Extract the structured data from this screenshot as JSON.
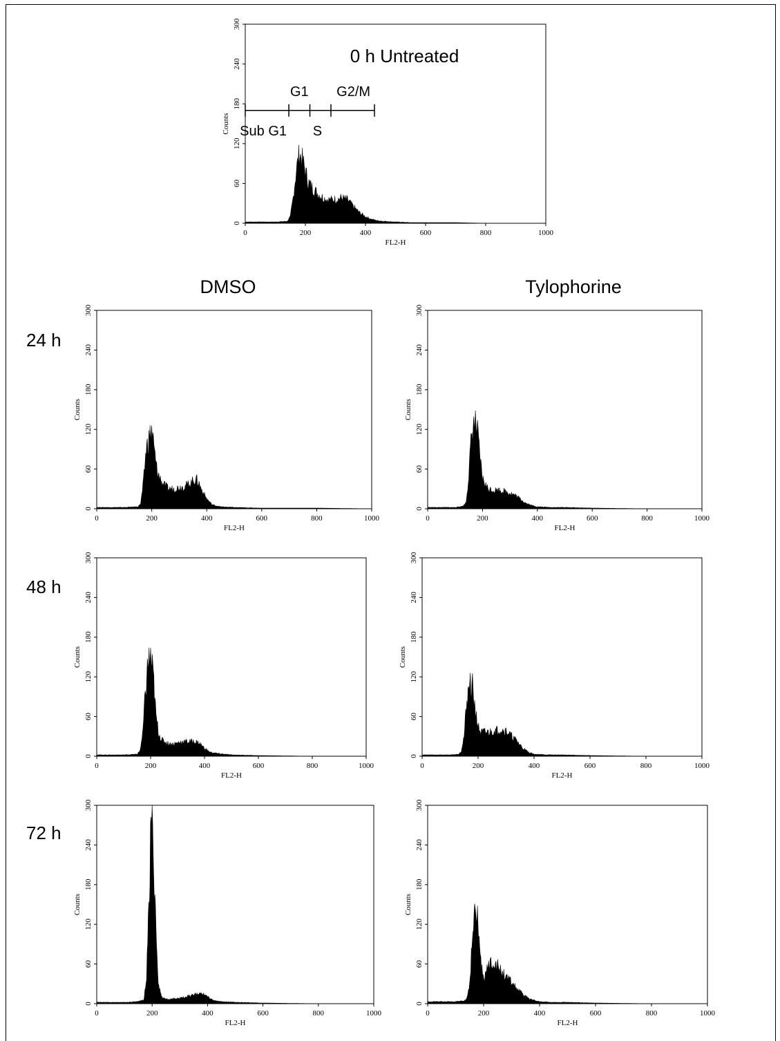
{
  "column_headers": {
    "left": "DMSO",
    "right": "Tylophorine"
  },
  "row_labels": [
    "24 h",
    "48 h",
    "72 h"
  ],
  "chart_data": [
    {
      "id": "untreated-0h",
      "type": "area",
      "title": "0 h Untreated",
      "xlabel": "FL2-H",
      "ylabel": "Counts",
      "xlim": [
        0,
        1000
      ],
      "ylim": [
        0,
        300
      ],
      "xticks": [
        "0",
        "200",
        "400",
        "600",
        "800",
        "1000"
      ],
      "yticks": [
        "0",
        "60",
        "120",
        "180",
        "240",
        "300"
      ],
      "grid": false,
      "fill_color": "#000000",
      "x": [
        0,
        50,
        100,
        140,
        150,
        160,
        170,
        180,
        190,
        200,
        210,
        220,
        240,
        260,
        280,
        300,
        320,
        340,
        360,
        380,
        400,
        420,
        440,
        460,
        500,
        550,
        600,
        700,
        800,
        900,
        1000
      ],
      "values": [
        2,
        2,
        2,
        3,
        10,
        40,
        80,
        105,
        95,
        78,
        62,
        55,
        45,
        38,
        35,
        36,
        38,
        35,
        25,
        16,
        10,
        6,
        4,
        3,
        2,
        1,
        1,
        1,
        0,
        0,
        0
      ],
      "gate_markers": {
        "boundaries": [
          0,
          145,
          215,
          285,
          430
        ],
        "labels": [
          {
            "text": "Sub G1",
            "position": "below",
            "x": 60
          },
          {
            "text": "G1",
            "position": "above",
            "x": 180
          },
          {
            "text": "S",
            "position": "below",
            "x": 240
          },
          {
            "text": "G2/M",
            "position": "above",
            "x": 360
          }
        ]
      }
    },
    {
      "id": "dmso-24h",
      "type": "area",
      "xlabel": "FL2-H",
      "ylabel": "Counts",
      "xlim": [
        0,
        1000
      ],
      "ylim": [
        0,
        300
      ],
      "xticks": [
        "0",
        "200",
        "400",
        "600",
        "800",
        "1000"
      ],
      "yticks": [
        "0",
        "60",
        "120",
        "180",
        "240",
        "300"
      ],
      "grid": false,
      "fill_color": "#000000",
      "x": [
        0,
        100,
        150,
        160,
        170,
        180,
        190,
        200,
        210,
        220,
        240,
        260,
        280,
        300,
        320,
        340,
        350,
        360,
        370,
        380,
        400,
        420,
        450,
        500,
        600,
        700,
        800,
        1000
      ],
      "values": [
        2,
        2,
        3,
        8,
        40,
        90,
        105,
        118,
        85,
        55,
        38,
        30,
        30,
        32,
        34,
        38,
        42,
        45,
        40,
        30,
        15,
        6,
        3,
        2,
        1,
        1,
        1,
        0
      ]
    },
    {
      "id": "tylophorine-24h",
      "type": "area",
      "xlabel": "FL2-H",
      "ylabel": "Counts",
      "xlim": [
        0,
        1000
      ],
      "ylim": [
        0,
        300
      ],
      "xticks": [
        "0",
        "200",
        "400",
        "600",
        "800",
        "1000"
      ],
      "yticks": [
        "0",
        "60",
        "120",
        "180",
        "240",
        "300"
      ],
      "grid": false,
      "fill_color": "#000000",
      "x": [
        0,
        100,
        130,
        140,
        150,
        160,
        170,
        180,
        190,
        200,
        220,
        240,
        260,
        280,
        300,
        320,
        340,
        360,
        380,
        400,
        450,
        500,
        600,
        800,
        1000
      ],
      "values": [
        2,
        2,
        4,
        10,
        50,
        110,
        130,
        120,
        80,
        45,
        30,
        28,
        28,
        26,
        24,
        20,
        14,
        8,
        5,
        3,
        2,
        2,
        1,
        0,
        0
      ]
    },
    {
      "id": "dmso-48h",
      "type": "area",
      "xlabel": "FL2-H",
      "ylabel": "Counts",
      "xlim": [
        0,
        1000
      ],
      "ylim": [
        0,
        300
      ],
      "xticks": [
        "0",
        "200",
        "400",
        "600",
        "800",
        "1000"
      ],
      "yticks": [
        "0",
        "60",
        "120",
        "180",
        "240",
        "300"
      ],
      "grid": false,
      "fill_color": "#000000",
      "x": [
        0,
        100,
        150,
        160,
        170,
        180,
        190,
        200,
        210,
        220,
        230,
        240,
        260,
        280,
        300,
        320,
        340,
        360,
        380,
        400,
        420,
        450,
        500,
        600,
        800,
        1000
      ],
      "values": [
        2,
        2,
        3,
        8,
        30,
        90,
        140,
        150,
        120,
        60,
        35,
        25,
        20,
        18,
        20,
        22,
        22,
        22,
        20,
        12,
        6,
        4,
        2,
        1,
        0,
        0
      ]
    },
    {
      "id": "tylophorine-48h",
      "type": "area",
      "xlabel": "FL2-H",
      "ylabel": "Counts",
      "xlim": [
        0,
        1000
      ],
      "ylim": [
        0,
        300
      ],
      "xticks": [
        "0",
        "200",
        "400",
        "600",
        "800",
        "1000"
      ],
      "yticks": [
        "0",
        "60",
        "120",
        "180",
        "240",
        "300"
      ],
      "grid": false,
      "fill_color": "#000000",
      "x": [
        0,
        100,
        130,
        140,
        150,
        160,
        170,
        180,
        190,
        200,
        210,
        220,
        240,
        260,
        280,
        300,
        320,
        340,
        360,
        380,
        400,
        450,
        500,
        600,
        800,
        1000
      ],
      "values": [
        2,
        2,
        3,
        8,
        30,
        85,
        110,
        105,
        70,
        45,
        35,
        36,
        36,
        38,
        40,
        38,
        30,
        22,
        12,
        6,
        3,
        2,
        2,
        1,
        0,
        0
      ]
    },
    {
      "id": "dmso-72h",
      "type": "area",
      "xlabel": "FL2-H",
      "ylabel": "Counts",
      "xlim": [
        0,
        1000
      ],
      "ylim": [
        0,
        300
      ],
      "xticks": [
        "0",
        "200",
        "400",
        "600",
        "800",
        "1000"
      ],
      "yticks": [
        "0",
        "60",
        "120",
        "180",
        "240",
        "300"
      ],
      "grid": false,
      "fill_color": "#000000",
      "x": [
        0,
        100,
        150,
        170,
        180,
        190,
        195,
        200,
        205,
        210,
        220,
        230,
        240,
        260,
        280,
        300,
        320,
        340,
        360,
        380,
        400,
        420,
        450,
        500,
        600,
        800,
        1000
      ],
      "values": [
        2,
        2,
        3,
        6,
        40,
        170,
        260,
        290,
        250,
        150,
        40,
        15,
        8,
        6,
        8,
        8,
        10,
        12,
        14,
        16,
        12,
        5,
        3,
        2,
        1,
        0,
        0
      ]
    },
    {
      "id": "tylophorine-72h",
      "type": "area",
      "xlabel": "FL2-H",
      "ylabel": "Counts",
      "xlim": [
        0,
        1000
      ],
      "ylim": [
        0,
        300
      ],
      "xticks": [
        "0",
        "200",
        "400",
        "600",
        "800",
        "1000"
      ],
      "yticks": [
        "0",
        "60",
        "120",
        "180",
        "240",
        "300"
      ],
      "grid": false,
      "fill_color": "#000000",
      "x": [
        0,
        100,
        130,
        140,
        150,
        160,
        170,
        180,
        190,
        200,
        210,
        220,
        230,
        240,
        260,
        280,
        300,
        320,
        340,
        360,
        380,
        400,
        450,
        500,
        600,
        800,
        1000
      ],
      "values": [
        3,
        3,
        4,
        8,
        30,
        100,
        140,
        120,
        60,
        42,
        48,
        58,
        65,
        62,
        50,
        40,
        32,
        22,
        14,
        8,
        5,
        3,
        2,
        2,
        1,
        0,
        0
      ]
    }
  ]
}
